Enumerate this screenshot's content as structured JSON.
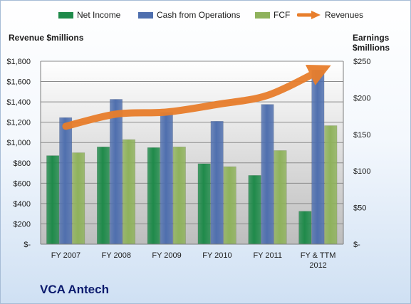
{
  "colors": {
    "net_income": "#1f8a4a",
    "cash_from_operations": "#4f6fae",
    "fcf": "#8fb25c",
    "revenues": "#e87e2c"
  },
  "company": "VCA Antech",
  "legend": [
    "Net Income",
    "Cash from Operations",
    "FCF",
    "Revenues"
  ],
  "chart_data": {
    "type": "bar",
    "categories": [
      "FY 2007",
      "FY 2008",
      "FY 2009",
      "FY 2010",
      "FY 2011",
      "FY & TTM 2012"
    ],
    "y_left": {
      "title": "Revenue $millions",
      "range": [
        0,
        1800
      ],
      "ticks": [
        0,
        200,
        400,
        600,
        800,
        1000,
        1200,
        1400,
        1600,
        1800
      ],
      "tick_labels": [
        "$-",
        "$200",
        "$400",
        "$600",
        "$800",
        "$1,000",
        "$1,200",
        "$1,400",
        "$1,600",
        "$1,800"
      ]
    },
    "y_right": {
      "title": "Earnings $millions",
      "range": [
        0,
        250
      ],
      "ticks": [
        0,
        50,
        100,
        150,
        200,
        250
      ],
      "tick_labels": [
        "$-",
        "$50",
        "$100",
        "$150",
        "$200",
        "$250"
      ]
    },
    "series": [
      {
        "name": "Net Income",
        "type": "bar",
        "axis": "right",
        "values": [
          121,
          133,
          132,
          110,
          94,
          45
        ]
      },
      {
        "name": "Cash from Operations",
        "type": "bar",
        "axis": "right",
        "values": [
          173,
          198,
          180,
          168,
          191,
          238
        ]
      },
      {
        "name": "FCF",
        "type": "bar",
        "axis": "right",
        "values": [
          125,
          143,
          133,
          106,
          128,
          162
        ]
      },
      {
        "name": "Revenues",
        "type": "line",
        "axis": "left",
        "values": [
          1160,
          1280,
          1300,
          1375,
          1465,
          1700
        ]
      }
    ],
    "grid": true,
    "legend_position": "top"
  }
}
